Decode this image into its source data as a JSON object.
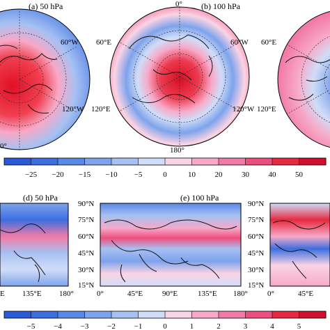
{
  "polar_panels": [
    {
      "label": "(a) 50 hPa",
      "deg_top": "",
      "lon_labels": [
        "60°W",
        "120°W",
        "0°"
      ]
    },
    {
      "label": "(b) 100 hPa",
      "deg_top": "0°",
      "lon_labels": [
        "60°W",
        "60°E",
        "120°W",
        "120°E",
        "180°"
      ]
    },
    {
      "label": "",
      "deg_top": "",
      "lon_labels": [
        "60°E",
        "120°E"
      ]
    }
  ],
  "colorbar_top": {
    "ticks": [
      "−25",
      "−20",
      "−15",
      "−10",
      "−5",
      "0",
      "10",
      "20",
      "30",
      "40",
      "50"
    ],
    "colors": [
      "#2a5ad6",
      "#3c6ee0",
      "#5a88e6",
      "#7ea3ec",
      "#a7c1f2",
      "#d0ddf8",
      "#fad4e4",
      "#f7a9c7",
      "#f27aa6",
      "#ec4f7f",
      "#e52a3f",
      "#d0102c"
    ]
  },
  "map_panels": [
    {
      "label": "(d) 50 hPa",
      "lat_labels": [],
      "lon_labels": [
        "E",
        "135°E",
        "180°"
      ]
    },
    {
      "label": "(e) 100 hPa",
      "lat_labels": [
        "90°N",
        "75°N",
        "60°N",
        "45°N",
        "30°N",
        "15°N"
      ],
      "lon_labels": [
        "0°",
        "45°E",
        "90°E",
        "135°E",
        "180°"
      ]
    },
    {
      "label": "",
      "lat_labels": [
        "90°N",
        "75°N",
        "60°N",
        "45°N",
        "30°N",
        "15°N"
      ],
      "lon_labels": [
        "0°",
        "45°E"
      ]
    }
  ],
  "colorbar_bottom": {
    "ticks": [
      "−5",
      "−4",
      "−3",
      "−2",
      "−1",
      "0",
      "1",
      "2",
      "3",
      "4",
      "5"
    ],
    "colors": [
      "#2a5ad6",
      "#3c6ee0",
      "#5a88e6",
      "#7ea3ec",
      "#a7c1f2",
      "#d0ddf8",
      "#fad4e4",
      "#f7a9c7",
      "#f27aa6",
      "#ec4f7f",
      "#e52a3f",
      "#d0102c"
    ]
  }
}
